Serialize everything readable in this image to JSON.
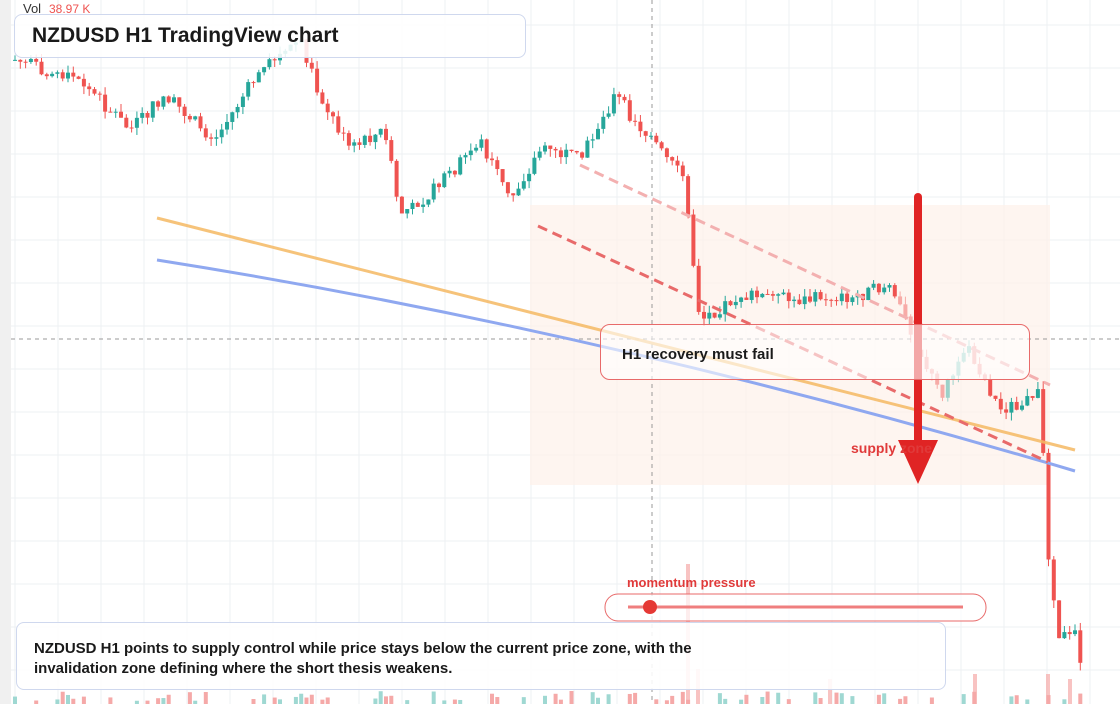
{
  "legend": {
    "label": "Vol",
    "value": "38.97 K"
  },
  "header": {
    "title": "NZDUSD H1 TradingView chart"
  },
  "annotations": {
    "recovery": "H1 recovery must fail",
    "zone": "supply zone",
    "momentum": "momentum pressure"
  },
  "caption": {
    "text": "NZDUSD H1 points to supply control while price stays below the current price zone, with the invalidation zone defining where the short thesis weakens."
  }
}
